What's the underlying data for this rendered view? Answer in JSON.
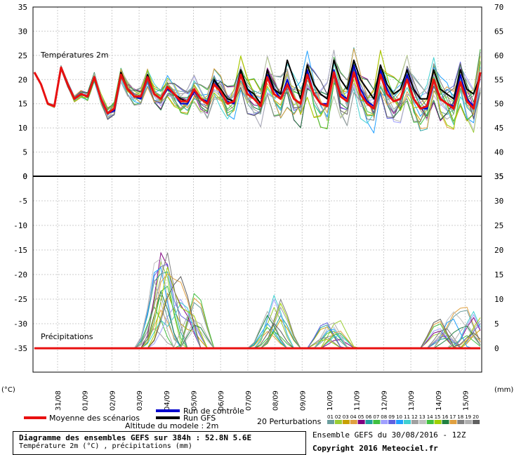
{
  "chart_data": {
    "type": "line",
    "x_categories": [
      "31/08",
      "01/09",
      "02/09",
      "03/09",
      "04/09",
      "05/09",
      "06/09",
      "07/09",
      "08/09",
      "09/09",
      "10/09",
      "11/09",
      "12/09",
      "13/09",
      "14/09",
      "15/09"
    ],
    "temperature_panel": {
      "label": "Températures 2m",
      "y_left_ticks": [
        35,
        30,
        25,
        20,
        15,
        10,
        5,
        0
      ],
      "y_right_ticks": [
        70,
        65,
        60,
        55,
        50,
        45,
        40,
        35
      ],
      "ylim": [
        0,
        35
      ],
      "series": {
        "mean": [
          21.5,
          19,
          15,
          14.5,
          22.5,
          19,
          16,
          17,
          16.5,
          20.5,
          16,
          13,
          14,
          21,
          18,
          16.5,
          16.5,
          20.5,
          17,
          16,
          18.5,
          17,
          15.5,
          15.5,
          18,
          16,
          15,
          19,
          17.5,
          15,
          15.5,
          21,
          17,
          16,
          14.5,
          20.5,
          17,
          16,
          19,
          16,
          15,
          21,
          17,
          15,
          14.5,
          21.5,
          16.5,
          15.5,
          21.5,
          17,
          15,
          14,
          21,
          17,
          15.5,
          16,
          20,
          16,
          14,
          14.5,
          20,
          16,
          15,
          14,
          19.5,
          15.5,
          14,
          21.5
        ],
        "control": [
          21.5,
          19,
          15,
          14.5,
          22.5,
          19,
          16,
          17,
          16.5,
          20.5,
          16,
          13,
          13.5,
          21,
          18,
          16.5,
          16,
          21,
          17,
          16,
          18,
          17,
          15,
          15,
          17.5,
          16,
          15.5,
          20,
          17,
          15.5,
          15,
          22,
          18,
          16,
          14.5,
          21,
          18,
          16,
          20,
          16,
          15,
          22,
          17,
          15,
          15,
          22,
          17,
          16,
          23,
          18,
          15.5,
          14.5,
          22,
          18,
          15.5,
          16,
          21,
          16,
          14,
          14,
          20,
          16,
          15,
          14.5,
          21,
          16,
          14.5,
          21
        ],
        "gfs": [
          21.5,
          19,
          15,
          14.5,
          22.5,
          19,
          16,
          17,
          16.5,
          20.5,
          16,
          13,
          14,
          21.5,
          18,
          16.5,
          16.5,
          21,
          17,
          16,
          18.5,
          17,
          16,
          15.5,
          18,
          16,
          15,
          20,
          18,
          16,
          15.5,
          22,
          18,
          17,
          15,
          22,
          18,
          17,
          24,
          20,
          16,
          23,
          19,
          17,
          16,
          24,
          20,
          18,
          24,
          20,
          18,
          16,
          23,
          19,
          17,
          18,
          22,
          18,
          16,
          16,
          22,
          18,
          17,
          16,
          22,
          18,
          17,
          21
        ]
      },
      "colors": {
        "mean": "#e81010",
        "control": "#0000cc",
        "gfs": "#000000"
      }
    },
    "precip_panel": {
      "label": "Précipitations",
      "y_left_ticks": [
        0,
        -5,
        -10,
        -15,
        -20,
        -25,
        -30,
        -35
      ],
      "y_right_ticks": [
        35,
        30,
        25,
        20,
        15,
        10,
        5,
        0
      ],
      "ylim_mm": [
        0,
        35
      ],
      "peak_events_mm": [
        {
          "at": "04/09",
          "max": 20
        },
        {
          "at": "04/09",
          "max": 14
        },
        {
          "at": "05/09",
          "max": 15
        },
        {
          "at": "08/09",
          "max": 12
        },
        {
          "at": "10/09",
          "max": 7
        },
        {
          "at": "14/09",
          "max": 8
        },
        {
          "at": "15/09",
          "max": 9
        }
      ]
    },
    "unit_left": "(°C)",
    "unit_right": "(mm)"
  },
  "legend": {
    "mean_label": "Moyenne des scénarios",
    "control_label": "Run de contrôle",
    "gfs_label": "Run GFS",
    "altitude_label": "Altitude du modele : 2m",
    "perturbations_label": "20 Perturbations",
    "perturbation_ids": [
      "01",
      "02",
      "03",
      "04",
      "05",
      "06",
      "07",
      "08",
      "09",
      "10",
      "11",
      "12",
      "13",
      "14",
      "15",
      "16",
      "17",
      "18",
      "19",
      "20"
    ],
    "perturbation_colors": [
      "#6b9e9e",
      "#9acd32",
      "#c8a000",
      "#e0a040",
      "#800080",
      "#20a0a0",
      "#40c040",
      "#a0a0ff",
      "#6060e0",
      "#20a0ff",
      "#40d0d0",
      "#a0a0a0",
      "#c0c0c0",
      "#40c040",
      "#a0d000",
      "#208040",
      "#e0a040",
      "#808080",
      "#b0b0b0",
      "#606060"
    ]
  },
  "footer": {
    "title": "Diagramme des ensembles GEFS sur 384h : 52.8N 5.6E",
    "subtitle": "Température 2m (°C) , précipitations (mm)",
    "run_info": "Ensemble GEFS du 30/08/2016 - 12Z",
    "copyright": "Copyright 2016 Meteociel.fr"
  }
}
